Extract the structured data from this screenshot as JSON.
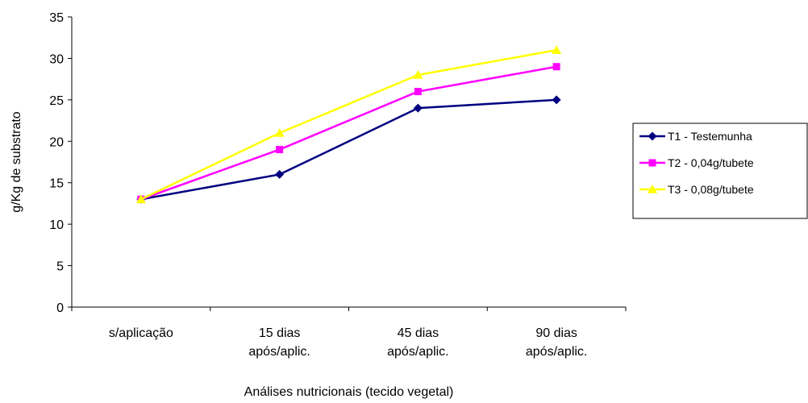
{
  "chart_data": {
    "type": "line",
    "title": "",
    "xlabel": "Análises nutricionais (tecido vegetal)",
    "ylabel": "g/Kg de substrato",
    "categories": [
      [
        "s/aplicação"
      ],
      [
        "15 dias",
        "após/aplic."
      ],
      [
        "45 dias",
        "após/aplic."
      ],
      [
        "90 dias",
        "após/aplic."
      ]
    ],
    "ylim": [
      0,
      35
    ],
    "yticks": [
      "0",
      "5",
      "10",
      "15",
      "20",
      "25",
      "30",
      "35"
    ],
    "grid": false,
    "legend_position": "right",
    "series": [
      {
        "name": "T1 - Testemunha",
        "values": [
          13,
          16,
          24,
          25
        ],
        "color": "#000080",
        "marker": "diamond"
      },
      {
        "name": "T2 - 0,04g/tubete",
        "values": [
          13,
          19,
          26,
          29
        ],
        "color": "#ff00ff",
        "marker": "square"
      },
      {
        "name": "T3 - 0,08g/tubete",
        "values": [
          13,
          21,
          28,
          31
        ],
        "color": "#ffff00",
        "marker": "triangle"
      }
    ]
  }
}
